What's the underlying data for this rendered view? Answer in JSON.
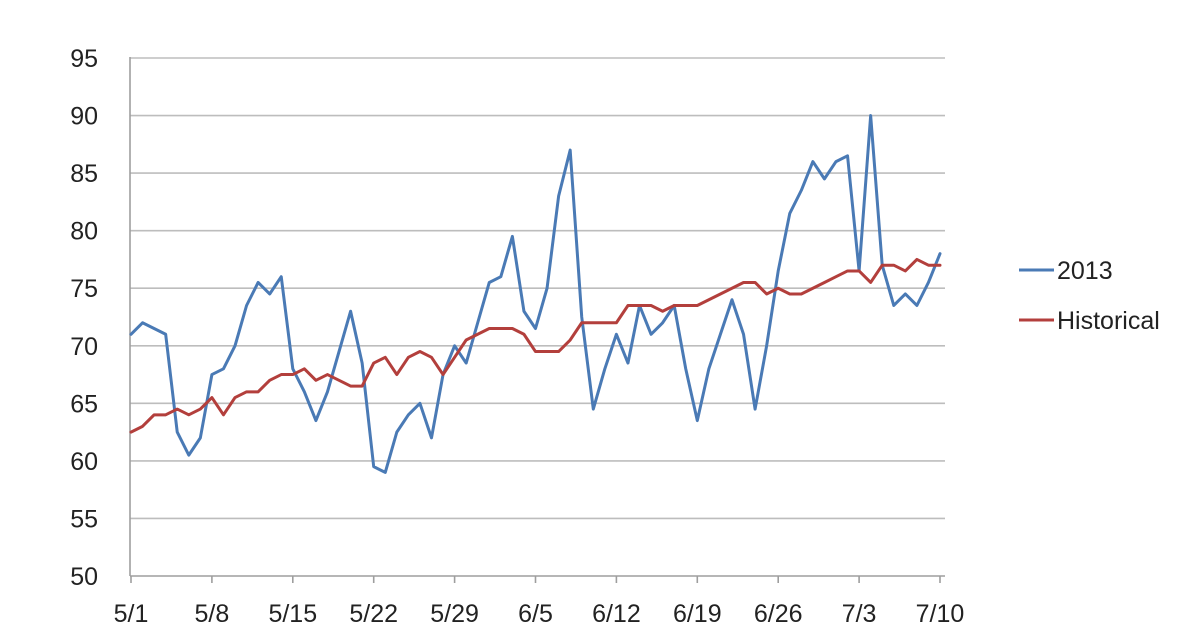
{
  "chart_data": {
    "type": "line",
    "title": "",
    "xlabel": "",
    "ylabel": "",
    "ylim": [
      50,
      95
    ],
    "y_ticks": [
      "50",
      "55",
      "60",
      "65",
      "70",
      "75",
      "80",
      "85",
      "90",
      "95"
    ],
    "x_ticks": [
      "5/1",
      "5/8",
      "5/15",
      "5/22",
      "5/29",
      "6/5",
      "6/12",
      "6/19",
      "6/26",
      "7/3",
      "7/10"
    ],
    "grid": "horizontal",
    "legend_position": "right",
    "x_start": "2013-05-01",
    "x_end": "2013-07-10",
    "series": [
      {
        "name": "2013",
        "color": "#4a7ab5",
        "values": [
          71,
          72,
          71.5,
          71,
          62.5,
          60.5,
          62,
          67.5,
          68,
          70,
          73.5,
          75.5,
          74.5,
          76,
          68,
          66,
          63.5,
          66,
          69.5,
          73,
          68.5,
          59.5,
          59,
          62.5,
          64,
          65,
          62,
          67.5,
          70,
          68.5,
          72,
          75.5,
          76,
          79.5,
          73,
          71.5,
          75,
          83,
          87,
          72.5,
          64.5,
          68,
          71,
          68.5,
          73.5,
          71,
          72,
          73.5,
          68,
          63.5,
          68,
          71,
          74,
          71,
          64.5,
          70,
          76.5,
          81.5,
          83.5,
          86,
          84.5,
          86,
          86.5,
          76.5,
          90,
          77,
          73.5,
          74.5,
          73.5,
          75.5,
          78
        ]
      },
      {
        "name": "Historical",
        "color": "#b33f3c",
        "values": [
          62.5,
          63,
          64,
          64,
          64.5,
          64,
          64.5,
          65.5,
          64,
          65.5,
          66,
          66,
          67,
          67.5,
          67.5,
          68,
          67,
          67.5,
          67,
          66.5,
          66.5,
          68.5,
          69,
          67.5,
          69,
          69.5,
          69,
          67.5,
          69,
          70.5,
          71,
          71.5,
          71.5,
          71.5,
          71,
          69.5,
          69.5,
          69.5,
          70.5,
          72,
          72,
          72,
          72,
          73.5,
          73.5,
          73.5,
          73,
          73.5,
          73.5,
          73.5,
          74,
          74.5,
          75,
          75.5,
          75.5,
          74.5,
          75,
          74.5,
          74.5,
          75,
          75.5,
          76,
          76.5,
          76.5,
          75.5,
          77,
          77,
          76.5,
          77.5,
          77,
          77
        ]
      }
    ]
  }
}
